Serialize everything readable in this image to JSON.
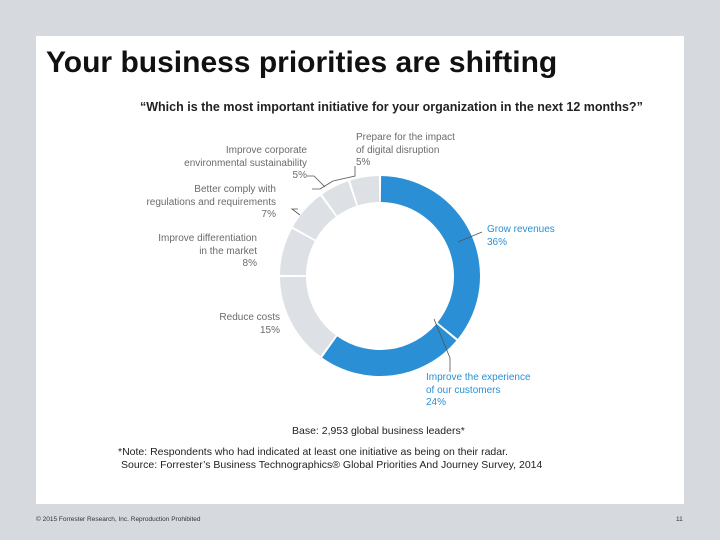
{
  "slide": {
    "title": "Your business priorities are shifting",
    "base": "Base: 2,953 global business leaders*",
    "note_line1": "*Note: Respondents who had indicated at least one initiative as being on their radar.",
    "note_line2": "Source: Forrester’s Business Technographics® Global Priorities And Journey Survey, 2014",
    "footer_left": "© 2015 Forrester Research, Inc. Reproduction Prohibited",
    "page_number": "11"
  },
  "chart_data": {
    "type": "pie",
    "title": "“Which is the most important initiative for your organization in the next 12 months?”",
    "slices": [
      {
        "label_lines": [
          "Grow revenues"
        ],
        "value_label": "36%",
        "value": 36,
        "color": "#2a8fd4"
      },
      {
        "label_lines": [
          "Improve the experience",
          "of our customers"
        ],
        "value_label": "24%",
        "value": 24,
        "color": "#2a8fd4"
      },
      {
        "label_lines": [
          "Reduce costs"
        ],
        "value_label": "15%",
        "value": 15,
        "color": "#dde1e5"
      },
      {
        "label_lines": [
          "Improve differentiation",
          "in the market"
        ],
        "value_label": "8%",
        "value": 8,
        "color": "#dde1e5"
      },
      {
        "label_lines": [
          "Better comply with",
          "regulations and requirements"
        ],
        "value_label": "7%",
        "value": 7,
        "color": "#dde1e5"
      },
      {
        "label_lines": [
          "Improve corporate",
          "environmental sustainability"
        ],
        "value_label": "5%",
        "value": 5,
        "color": "#dde1e5"
      },
      {
        "label_lines": [
          "Prepare for the impact",
          "of digital disruption"
        ],
        "value_label": "5%",
        "value": 5,
        "color": "#dde1e5"
      }
    ]
  }
}
